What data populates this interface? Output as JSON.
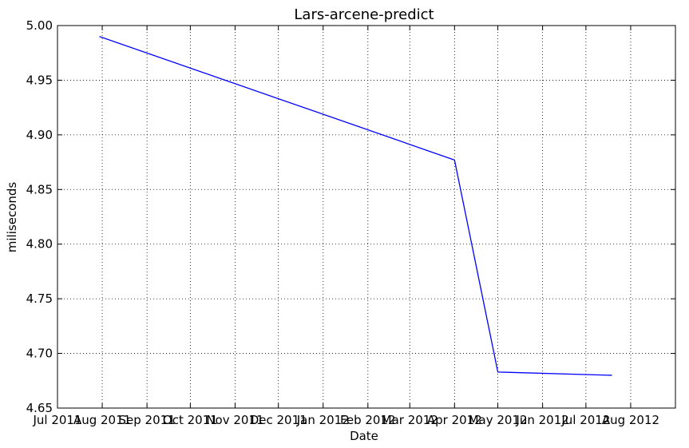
{
  "chart_data": {
    "type": "line",
    "title": "Lars-arcene-predict",
    "xlabel": "Date",
    "ylabel": "miliseconds",
    "x_type": "date",
    "xlim": [
      "2011-07-01",
      "2012-09-01"
    ],
    "ylim": [
      4.65,
      5.0
    ],
    "grid": true,
    "line_color": "#0000ff",
    "x_ticks": [
      {
        "date": "2011-07-01",
        "label": "Jul 2011"
      },
      {
        "date": "2011-08-01",
        "label": "Aug 2011"
      },
      {
        "date": "2011-09-01",
        "label": "Sep 2011"
      },
      {
        "date": "2011-10-01",
        "label": "Oct 2011"
      },
      {
        "date": "2011-11-01",
        "label": "Nov 2011"
      },
      {
        "date": "2011-12-01",
        "label": "Dec 2011"
      },
      {
        "date": "2012-01-01",
        "label": "Jan 2012"
      },
      {
        "date": "2012-02-01",
        "label": "Feb 2012"
      },
      {
        "date": "2012-03-01",
        "label": "Mar 2012"
      },
      {
        "date": "2012-04-01",
        "label": "Apr 2012"
      },
      {
        "date": "2012-05-01",
        "label": "May 2012"
      },
      {
        "date": "2012-06-01",
        "label": "Jun 2012"
      },
      {
        "date": "2012-07-01",
        "label": "Jul 2012"
      },
      {
        "date": "2012-08-01",
        "label": "Aug 2012"
      }
    ],
    "y_ticks": [
      {
        "value": 4.65,
        "label": "4.65"
      },
      {
        "value": 4.7,
        "label": "4.70"
      },
      {
        "value": 4.75,
        "label": "4.75"
      },
      {
        "value": 4.8,
        "label": "4.80"
      },
      {
        "value": 4.85,
        "label": "4.85"
      },
      {
        "value": 4.9,
        "label": "4.90"
      },
      {
        "value": 4.95,
        "label": "4.95"
      },
      {
        "value": 5.0,
        "label": "5.00"
      }
    ],
    "series": [
      {
        "points": [
          {
            "x": "2011-07-30",
            "y": 4.99
          },
          {
            "x": "2012-04-01",
            "y": 4.877
          },
          {
            "x": "2012-05-01",
            "y": 4.683
          },
          {
            "x": "2012-07-19",
            "y": 4.68
          }
        ]
      }
    ]
  }
}
